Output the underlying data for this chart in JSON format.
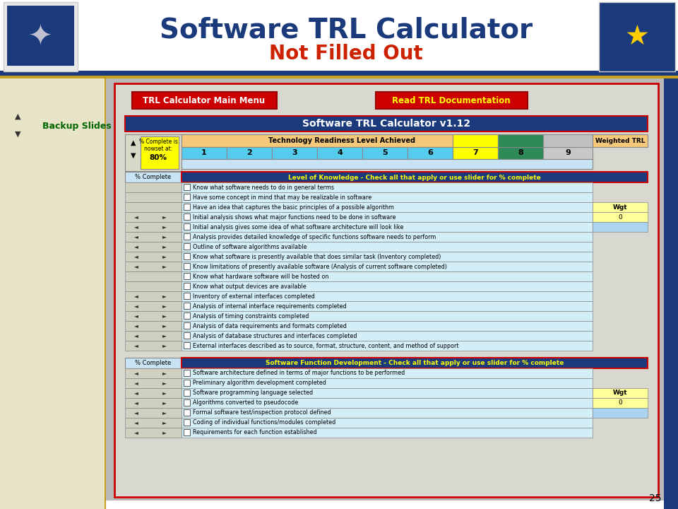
{
  "title": "Software TRL Calculator",
  "subtitle": "Not Filled Out",
  "title_color": "#1a3a7c",
  "subtitle_color": "#cc2200",
  "backup_text": "Backup Slides",
  "backup_color": "#006600",
  "page_number": "25",
  "btn1_text": "TRL Calculator Main Menu",
  "btn1_bg": "#cc0000",
  "btn1_fg": "#ffffff",
  "btn2_text": "Read TRL Documentation",
  "btn2_bg": "#cc0000",
  "btn2_fg": "#ffff00",
  "calc_title": "Software TRL Calculator v1.12",
  "calc_title_bg": "#1a3a7c",
  "calc_title_fg": "#ffffff",
  "trl_header": "Technology Readiness Level Achieved",
  "trl_header_bg": "#f5c87a",
  "weighted_trl": "Weighted TRL",
  "weighted_trl_bg": "#f5c87a",
  "trl_numbers": [
    "1",
    "2",
    "3",
    "4",
    "5",
    "6",
    "7",
    "8",
    "9"
  ],
  "trl_colors": [
    "#55ccee",
    "#55ccee",
    "#55ccee",
    "#55ccee",
    "#55ccee",
    "#55ccee",
    "#ffff00",
    "#2e8b57",
    "#c8c8c8"
  ],
  "section1_header": "Level of Knowledge - Check all that apply or use slider for % complete",
  "section1_header_bg": "#1a3a7c",
  "section1_header_fg": "#ffff00",
  "section1_items": [
    "Know what software needs to do in general terms",
    "Have some concept in mind that may be realizable in software",
    "Have an idea that captures the basic principles of a possible algorithm",
    "Initial analysis shows what major functions need to be done in software",
    "Initial analysis gives some idea of what software architecture will look like",
    "Analysis provides detailed knowledge of specific functions software needs to perform",
    "Outline of software algorithms available",
    "Know what software is presently available that does similar task (Inventory completed)",
    "Know limitations of presently available software (Analysis of current software completed)",
    "Know what hardware software will be hosted on",
    "Know what output devices are available",
    "Inventory of external interfaces completed",
    "Analysis of internal interface requirements completed",
    "Analysis of timing constraints completed",
    "Analysis of data requirements and formats completed",
    "Analysis of database structures and interfaces completed",
    "External interfaces described as to source, format, structure, content, and method of support"
  ],
  "section1_has_arrows": [
    false,
    false,
    false,
    true,
    true,
    true,
    true,
    true,
    true,
    false,
    false,
    true,
    true,
    true,
    true,
    true,
    true
  ],
  "section2_header": "Software Function Development - Check all that apply or use slider for % complete",
  "section2_header_bg": "#1a3a7c",
  "section2_header_fg": "#ffff00",
  "section2_items": [
    "Software architecture defined in terms of major functions to be performed",
    "Preliminary algorithm development completed",
    "Software programming language selected",
    "Algorithms converted to pseudocode",
    "Formal software test/inspection protocol defined",
    "Coding of individual functions/modules completed",
    "Requirements for each function established"
  ],
  "section2_has_arrows": [
    true,
    true,
    true,
    true,
    true,
    true,
    true
  ],
  "wgt_label": "Wgt",
  "wgt_value": "0",
  "wgt_bg": "#ffff99",
  "blue_cell_bg": "#aad4f0",
  "item_bg": "#d4eef8",
  "outer_border": "#cc0000",
  "content_bg": "#b8b8b8",
  "sidebar_bg": "#e8e4c8",
  "top_bar_bg": "#1a3a7c",
  "top_accent": "#c8a020",
  "right_bar_bg": "#1a3a7c"
}
